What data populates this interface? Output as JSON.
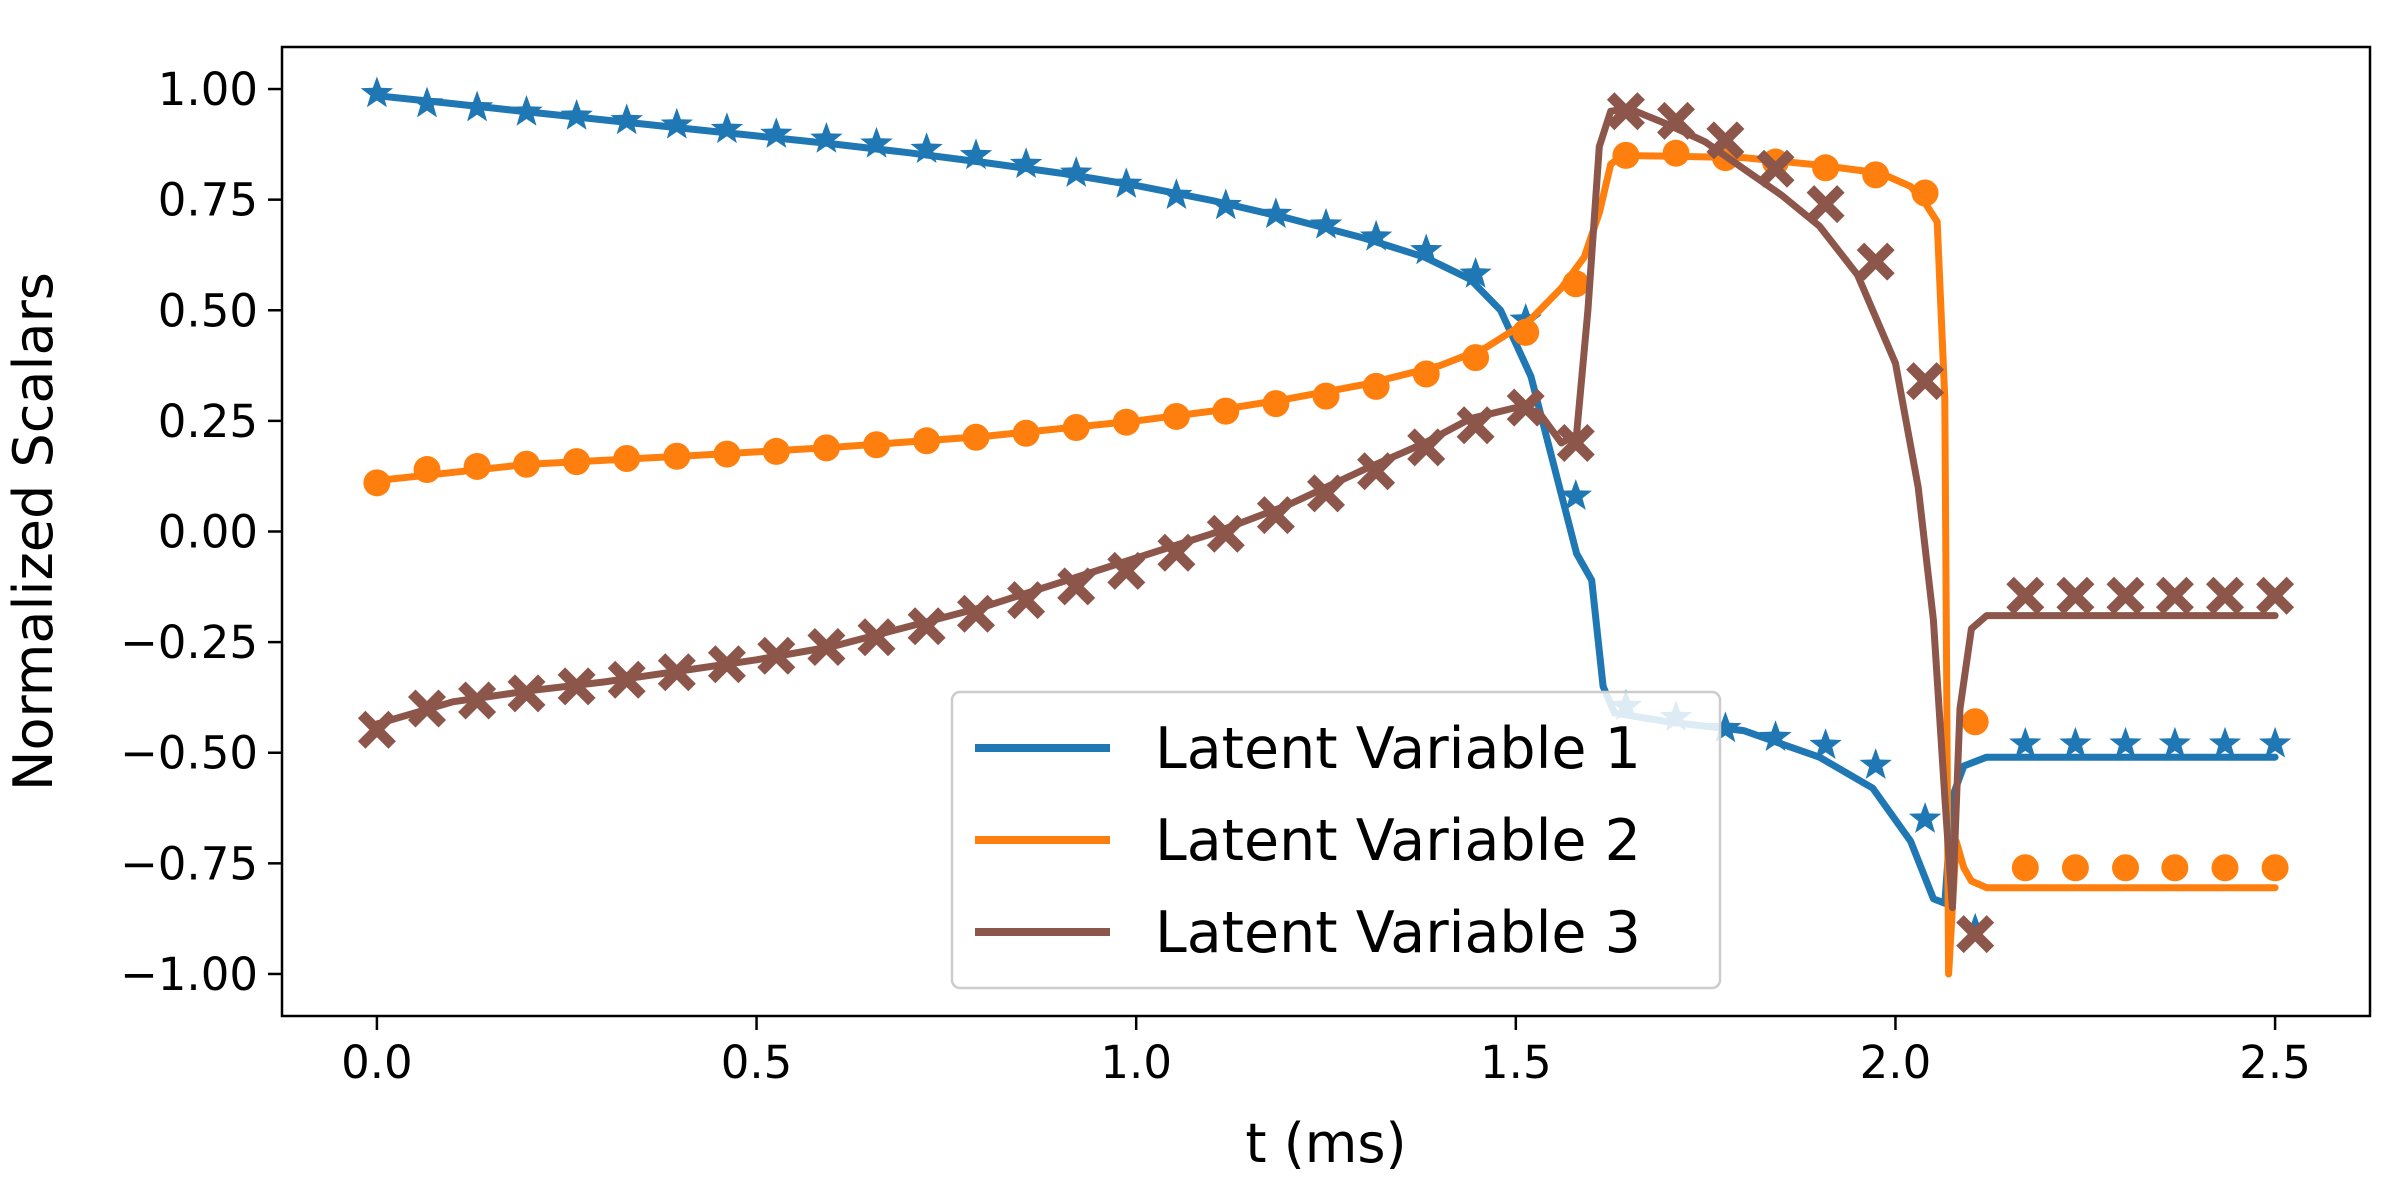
{
  "chart_data": {
    "type": "line",
    "title": "",
    "xlabel": "t (ms)",
    "ylabel": "Normalized Scalars",
    "xlim": [
      -0.125,
      2.625
    ],
    "ylim": [
      -1.095,
      1.095
    ],
    "xticks": [
      0.0,
      0.5,
      1.0,
      1.5,
      2.0,
      2.5
    ],
    "xtick_labels": [
      "0.0",
      "0.5",
      "1.0",
      "1.5",
      "2.0",
      "2.5"
    ],
    "yticks": [
      1.0,
      0.75,
      0.5,
      0.25,
      0.0,
      -0.25,
      -0.5,
      -0.75,
      -1.0
    ],
    "ytick_labels": [
      "1.00",
      "0.75",
      "0.50",
      "0.25",
      "0.00",
      "−0.25",
      "−0.50",
      "−0.75",
      "−1.00"
    ],
    "grid": false,
    "legend_position": "lower-center",
    "series": [
      {
        "name": "Latent Variable 1",
        "color": "#1f77b4",
        "marker": "star",
        "line": [
          [
            0.0,
            0.985
          ],
          [
            0.1,
            0.967
          ],
          [
            0.2,
            0.948
          ],
          [
            0.3,
            0.93
          ],
          [
            0.4,
            0.912
          ],
          [
            0.5,
            0.894
          ],
          [
            0.6,
            0.876
          ],
          [
            0.7,
            0.856
          ],
          [
            0.8,
            0.834
          ],
          [
            0.9,
            0.81
          ],
          [
            1.0,
            0.782
          ],
          [
            1.1,
            0.748
          ],
          [
            1.2,
            0.708
          ],
          [
            1.3,
            0.663
          ],
          [
            1.38,
            0.62
          ],
          [
            1.44,
            0.57
          ],
          [
            1.48,
            0.5
          ],
          [
            1.52,
            0.35
          ],
          [
            1.55,
            0.15
          ],
          [
            1.58,
            -0.05
          ],
          [
            1.6,
            -0.11
          ],
          [
            1.615,
            -0.35
          ],
          [
            1.63,
            -0.41
          ],
          [
            1.7,
            -0.43
          ],
          [
            1.8,
            -0.45
          ],
          [
            1.9,
            -0.51
          ],
          [
            1.97,
            -0.58
          ],
          [
            2.02,
            -0.7
          ],
          [
            2.05,
            -0.83
          ],
          [
            2.065,
            -0.84
          ],
          [
            2.075,
            -0.6
          ],
          [
            2.09,
            -0.53
          ],
          [
            2.12,
            -0.51
          ],
          [
            2.5,
            -0.51
          ]
        ],
        "markers": [
          [
            0.0,
            0.99
          ],
          [
            0.066,
            0.967
          ],
          [
            0.132,
            0.958
          ],
          [
            0.197,
            0.948
          ],
          [
            0.263,
            0.939
          ],
          [
            0.329,
            0.929
          ],
          [
            0.395,
            0.919
          ],
          [
            0.461,
            0.909
          ],
          [
            0.526,
            0.898
          ],
          [
            0.592,
            0.887
          ],
          [
            0.658,
            0.876
          ],
          [
            0.724,
            0.864
          ],
          [
            0.789,
            0.85
          ],
          [
            0.855,
            0.83
          ],
          [
            0.921,
            0.81
          ],
          [
            0.987,
            0.785
          ],
          [
            1.053,
            0.76
          ],
          [
            1.118,
            0.737
          ],
          [
            1.184,
            0.717
          ],
          [
            1.25,
            0.693
          ],
          [
            1.316,
            0.666
          ],
          [
            1.382,
            0.635
          ],
          [
            1.447,
            0.582
          ],
          [
            1.513,
            0.478
          ],
          [
            1.579,
            0.08
          ],
          [
            1.645,
            -0.395
          ],
          [
            1.711,
            -0.42
          ],
          [
            1.776,
            -0.445
          ],
          [
            1.842,
            -0.465
          ],
          [
            1.908,
            -0.483
          ],
          [
            1.974,
            -0.528
          ],
          [
            2.039,
            -0.65
          ],
          [
            2.105,
            -0.9
          ],
          [
            2.171,
            -0.48
          ],
          [
            2.237,
            -0.48
          ],
          [
            2.303,
            -0.48
          ],
          [
            2.368,
            -0.48
          ],
          [
            2.434,
            -0.48
          ],
          [
            2.5,
            -0.48
          ]
        ]
      },
      {
        "name": "Latent Variable 2",
        "color": "#ff7f0e",
        "marker": "circle",
        "line": [
          [
            0.0,
            0.115
          ],
          [
            0.2,
            0.152
          ],
          [
            0.4,
            0.17
          ],
          [
            0.6,
            0.19
          ],
          [
            0.8,
            0.215
          ],
          [
            1.0,
            0.25
          ],
          [
            1.1,
            0.272
          ],
          [
            1.2,
            0.3
          ],
          [
            1.3,
            0.332
          ],
          [
            1.4,
            0.375
          ],
          [
            1.46,
            0.415
          ],
          [
            1.52,
            0.48
          ],
          [
            1.56,
            0.55
          ],
          [
            1.59,
            0.62
          ],
          [
            1.61,
            0.72
          ],
          [
            1.625,
            0.83
          ],
          [
            1.64,
            0.85
          ],
          [
            1.8,
            0.845
          ],
          [
            1.9,
            0.828
          ],
          [
            1.98,
            0.81
          ],
          [
            2.02,
            0.78
          ],
          [
            2.04,
            0.74
          ],
          [
            2.055,
            0.7
          ],
          [
            2.065,
            0.3
          ],
          [
            2.07,
            -1.0
          ],
          [
            2.08,
            -0.7
          ],
          [
            2.09,
            -0.76
          ],
          [
            2.1,
            -0.79
          ],
          [
            2.12,
            -0.805
          ],
          [
            2.5,
            -0.805
          ]
        ],
        "markers": [
          [
            0.0,
            0.11
          ],
          [
            0.066,
            0.14
          ],
          [
            0.132,
            0.147
          ],
          [
            0.197,
            0.152
          ],
          [
            0.263,
            0.158
          ],
          [
            0.329,
            0.165
          ],
          [
            0.395,
            0.17
          ],
          [
            0.461,
            0.175
          ],
          [
            0.526,
            0.181
          ],
          [
            0.592,
            0.189
          ],
          [
            0.658,
            0.196
          ],
          [
            0.724,
            0.205
          ],
          [
            0.789,
            0.213
          ],
          [
            0.855,
            0.222
          ],
          [
            0.921,
            0.235
          ],
          [
            0.987,
            0.247
          ],
          [
            1.053,
            0.26
          ],
          [
            1.118,
            0.272
          ],
          [
            1.184,
            0.289
          ],
          [
            1.25,
            0.306
          ],
          [
            1.316,
            0.328
          ],
          [
            1.382,
            0.356
          ],
          [
            1.447,
            0.393
          ],
          [
            1.513,
            0.45
          ],
          [
            1.579,
            0.56
          ],
          [
            1.645,
            0.85
          ],
          [
            1.711,
            0.855
          ],
          [
            1.776,
            0.845
          ],
          [
            1.842,
            0.835
          ],
          [
            1.908,
            0.822
          ],
          [
            1.974,
            0.806
          ],
          [
            2.039,
            0.765
          ],
          [
            2.105,
            -0.43
          ],
          [
            2.171,
            -0.76
          ],
          [
            2.237,
            -0.76
          ],
          [
            2.303,
            -0.76
          ],
          [
            2.368,
            -0.76
          ],
          [
            2.434,
            -0.76
          ],
          [
            2.5,
            -0.76
          ]
        ]
      },
      {
        "name": "Latent Variable 3",
        "color": "#8c564b",
        "marker": "x",
        "line": [
          [
            0.0,
            -0.435
          ],
          [
            0.1,
            -0.385
          ],
          [
            0.2,
            -0.36
          ],
          [
            0.3,
            -0.34
          ],
          [
            0.4,
            -0.315
          ],
          [
            0.5,
            -0.29
          ],
          [
            0.6,
            -0.26
          ],
          [
            0.7,
            -0.215
          ],
          [
            0.8,
            -0.17
          ],
          [
            0.9,
            -0.115
          ],
          [
            1.0,
            -0.06
          ],
          [
            1.1,
            -0.005
          ],
          [
            1.2,
            0.06
          ],
          [
            1.3,
            0.14
          ],
          [
            1.38,
            0.2
          ],
          [
            1.44,
            0.255
          ],
          [
            1.5,
            0.28
          ],
          [
            1.53,
            0.27
          ],
          [
            1.56,
            0.2
          ],
          [
            1.58,
            0.22
          ],
          [
            1.595,
            0.5
          ],
          [
            1.61,
            0.87
          ],
          [
            1.625,
            0.95
          ],
          [
            1.65,
            0.955
          ],
          [
            1.7,
            0.92
          ],
          [
            1.75,
            0.88
          ],
          [
            1.8,
            0.82
          ],
          [
            1.85,
            0.76
          ],
          [
            1.9,
            0.69
          ],
          [
            1.95,
            0.58
          ],
          [
            2.0,
            0.38
          ],
          [
            2.03,
            0.1
          ],
          [
            2.05,
            -0.2
          ],
          [
            2.065,
            -0.6
          ],
          [
            2.075,
            -0.85
          ],
          [
            2.085,
            -0.4
          ],
          [
            2.1,
            -0.22
          ],
          [
            2.12,
            -0.19
          ],
          [
            2.5,
            -0.19
          ]
        ],
        "markers": [
          [
            0.0,
            -0.448
          ],
          [
            0.066,
            -0.4
          ],
          [
            0.132,
            -0.382
          ],
          [
            0.197,
            -0.366
          ],
          [
            0.263,
            -0.35
          ],
          [
            0.329,
            -0.335
          ],
          [
            0.395,
            -0.318
          ],
          [
            0.461,
            -0.3
          ],
          [
            0.526,
            -0.281
          ],
          [
            0.592,
            -0.261
          ],
          [
            0.658,
            -0.239
          ],
          [
            0.724,
            -0.214
          ],
          [
            0.789,
            -0.186
          ],
          [
            0.855,
            -0.155
          ],
          [
            0.921,
            -0.124
          ],
          [
            0.987,
            -0.089
          ],
          [
            1.053,
            -0.048
          ],
          [
            1.118,
            -0.005
          ],
          [
            1.184,
            0.037
          ],
          [
            1.25,
            0.086
          ],
          [
            1.316,
            0.136
          ],
          [
            1.382,
            0.19
          ],
          [
            1.447,
            0.24
          ],
          [
            1.513,
            0.28
          ],
          [
            1.579,
            0.2
          ],
          [
            1.645,
            0.95
          ],
          [
            1.711,
            0.928
          ],
          [
            1.776,
            0.884
          ],
          [
            1.842,
            0.82
          ],
          [
            1.908,
            0.74
          ],
          [
            1.974,
            0.61
          ],
          [
            2.039,
            0.34
          ],
          [
            2.105,
            -0.91
          ],
          [
            2.171,
            -0.145
          ],
          [
            2.237,
            -0.145
          ],
          [
            2.303,
            -0.145
          ],
          [
            2.368,
            -0.145
          ],
          [
            2.434,
            -0.145
          ],
          [
            2.5,
            -0.145
          ]
        ]
      }
    ]
  }
}
